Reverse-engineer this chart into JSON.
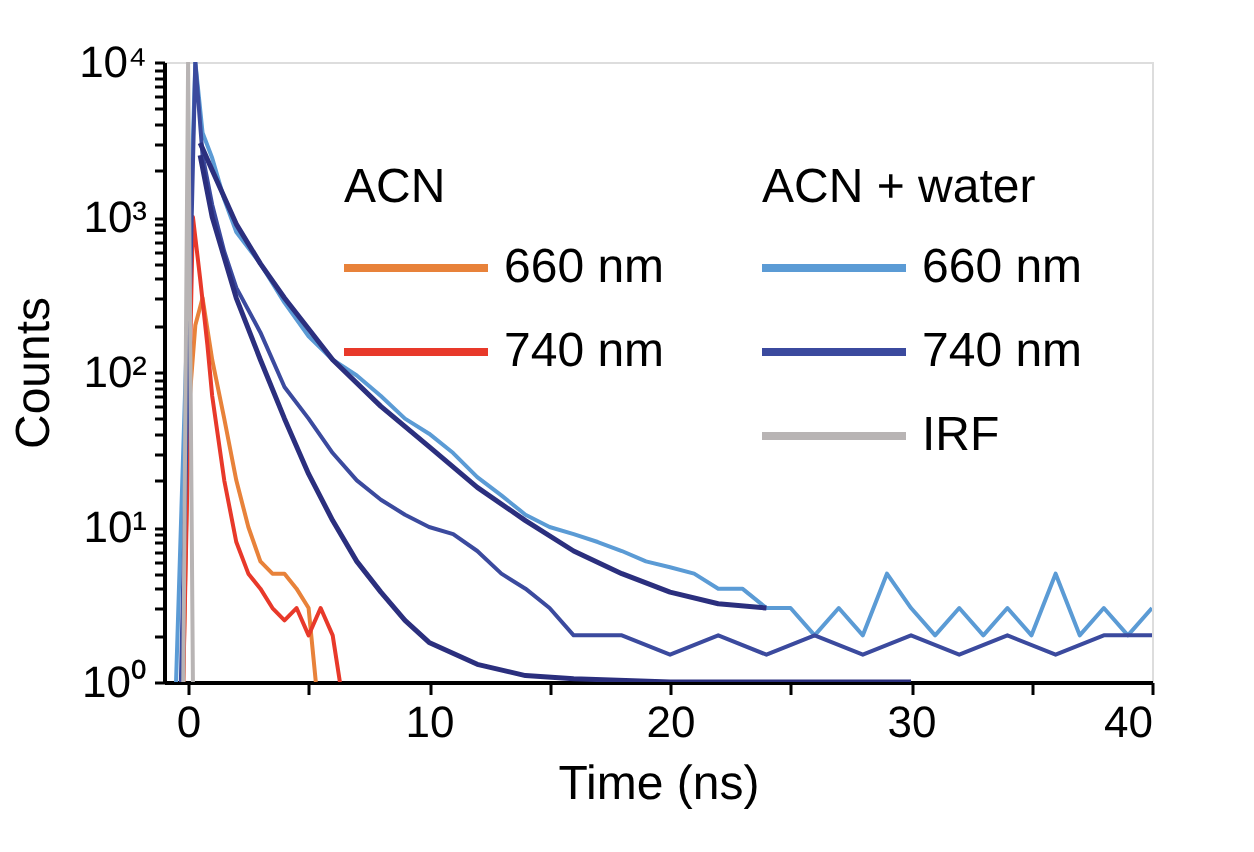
{
  "chart_data": {
    "type": "line",
    "xlabel": "Time (ns)",
    "ylabel": "Counts",
    "log": "y",
    "grid": false,
    "legend": "top right",
    "annotations": [
      "ACN",
      "ACN + water"
    ],
    "xlim": [
      -1,
      40
    ],
    "xticks": [
      0,
      {
        "value": 5,
        "label": null
      },
      10,
      {
        "value": 15,
        "label": null
      },
      20,
      {
        "value": 25,
        "label": null
      },
      30,
      {
        "value": 35,
        "label": null
      },
      40
    ],
    "ylim": [
      1,
      10000
    ],
    "yticks": [
      {
        "value": 1,
        "label": "10⁰"
      },
      {
        "value": 2,
        "label": null
      },
      {
        "value": 3,
        "label": null
      },
      {
        "value": 4,
        "label": null
      },
      {
        "value": 5,
        "label": null
      },
      {
        "value": 6,
        "label": null
      },
      {
        "value": 7,
        "label": null
      },
      {
        "value": 8,
        "label": null
      },
      {
        "value": 9,
        "label": null
      },
      {
        "value": 10,
        "label": "10¹"
      },
      {
        "value": 20,
        "label": null
      },
      {
        "value": 30,
        "label": null
      },
      {
        "value": 40,
        "label": null
      },
      {
        "value": 50,
        "label": null
      },
      {
        "value": 60,
        "label": null
      },
      {
        "value": 70,
        "label": null
      },
      {
        "value": 80,
        "label": null
      },
      {
        "value": 90,
        "label": null
      },
      {
        "value": 100,
        "label": "10²"
      },
      {
        "value": 200,
        "label": null
      },
      {
        "value": 300,
        "label": null
      },
      {
        "value": 400,
        "label": null
      },
      {
        "value": 500,
        "label": null
      },
      {
        "value": 600,
        "label": null
      },
      {
        "value": 700,
        "label": null
      },
      {
        "value": 800,
        "label": null
      },
      {
        "value": 900,
        "label": null
      },
      {
        "value": 1000,
        "label": "10³"
      },
      {
        "value": 2000,
        "label": null
      },
      {
        "value": 3000,
        "label": null
      },
      {
        "value": 4000,
        "label": null
      },
      {
        "value": 5000,
        "label": null
      },
      {
        "value": 6000,
        "label": null
      },
      {
        "value": 7000,
        "label": null
      },
      {
        "value": 8000,
        "label": null
      },
      {
        "value": 9000,
        "label": null
      },
      {
        "value": 10000,
        "label": "10⁴"
      }
    ],
    "series": [
      {
        "name": "660 nm",
        "color": "#e8823a",
        "x": [
          -0.2,
          0,
          0.3,
          0.6,
          1,
          1.5,
          2,
          2.5,
          3,
          3.5,
          4,
          4.5,
          5,
          5.3
        ],
        "values": [
          1,
          50,
          200,
          300,
          120,
          50,
          20,
          10,
          6,
          5,
          5,
          4,
          3,
          1
        ]
      },
      {
        "name": "740 nm",
        "color": "#e8392a",
        "x": [
          -0.2,
          0.2,
          0.5,
          0.8,
          1,
          1.5,
          2,
          2.5,
          3,
          3.5,
          4,
          4.5,
          5,
          5.5,
          6,
          6.3
        ],
        "values": [
          1,
          1000,
          400,
          150,
          70,
          20,
          8,
          5,
          4,
          3,
          2.5,
          3,
          2,
          3,
          2,
          1
        ]
      },
      {
        "name": "660 nm",
        "color": "#5b9bd5",
        "x": [
          -0.5,
          0.3,
          0.6,
          1,
          1.5,
          2,
          3,
          4,
          5,
          6,
          7,
          8,
          9,
          10,
          11,
          12,
          13,
          14,
          15,
          16,
          17,
          18,
          19,
          20,
          21,
          22,
          23,
          24,
          25,
          26,
          27,
          28,
          29,
          30,
          31,
          32,
          33,
          34,
          35,
          36,
          37,
          38,
          39,
          40
        ],
        "values": [
          1,
          10000,
          3500,
          2400,
          1300,
          800,
          500,
          280,
          170,
          120,
          95,
          70,
          50,
          40,
          30,
          21,
          16,
          12,
          10,
          9,
          8,
          7,
          6,
          5.5,
          5,
          4,
          4,
          3,
          3,
          2,
          3,
          2,
          5,
          3,
          2,
          3,
          2,
          3,
          2,
          5,
          2,
          3,
          2,
          3
        ]
      },
      {
        "name": "740 nm",
        "color": "#3b4a9e",
        "x": [
          -0.3,
          0.3,
          0.6,
          1,
          1.5,
          2,
          3,
          4,
          5,
          6,
          7,
          8,
          9,
          10,
          11,
          12,
          13,
          14,
          15,
          16,
          18,
          20,
          22,
          24,
          26,
          28,
          30,
          32,
          34,
          36,
          38,
          40
        ],
        "values": [
          1,
          10000,
          2500,
          1200,
          600,
          350,
          180,
          80,
          50,
          30,
          20,
          15,
          12,
          10,
          9,
          7,
          5,
          4,
          3,
          2,
          2,
          1.5,
          2,
          1.5,
          2,
          1.5,
          2,
          1.5,
          2,
          1.5,
          2,
          2
        ]
      },
      {
        "name": "IRF",
        "color": "#b8b4b4",
        "x": [
          -0.2,
          0,
          0.2
        ],
        "values": [
          1,
          10000,
          1
        ]
      },
      {
        "type": "line",
        "color": "#2b2f7e",
        "x": [
          0.5,
          1,
          2,
          3,
          4,
          6,
          8,
          10,
          12,
          14,
          16,
          18,
          20,
          22,
          24
        ],
        "values": [
          3000,
          2000,
          900,
          500,
          300,
          120,
          60,
          33,
          18,
          11,
          7,
          5,
          3.8,
          3.2,
          3
        ]
      },
      {
        "type": "line",
        "color": "#2b2f7e",
        "x": [
          0.5,
          1,
          2,
          3,
          4,
          5,
          6,
          7,
          8,
          9,
          10,
          12,
          14,
          16,
          20,
          25,
          30
        ],
        "values": [
          2500,
          1000,
          300,
          120,
          50,
          22,
          11,
          6,
          3.8,
          2.5,
          1.8,
          1.3,
          1.1,
          1.05,
          1,
          1,
          1
        ]
      }
    ]
  }
}
